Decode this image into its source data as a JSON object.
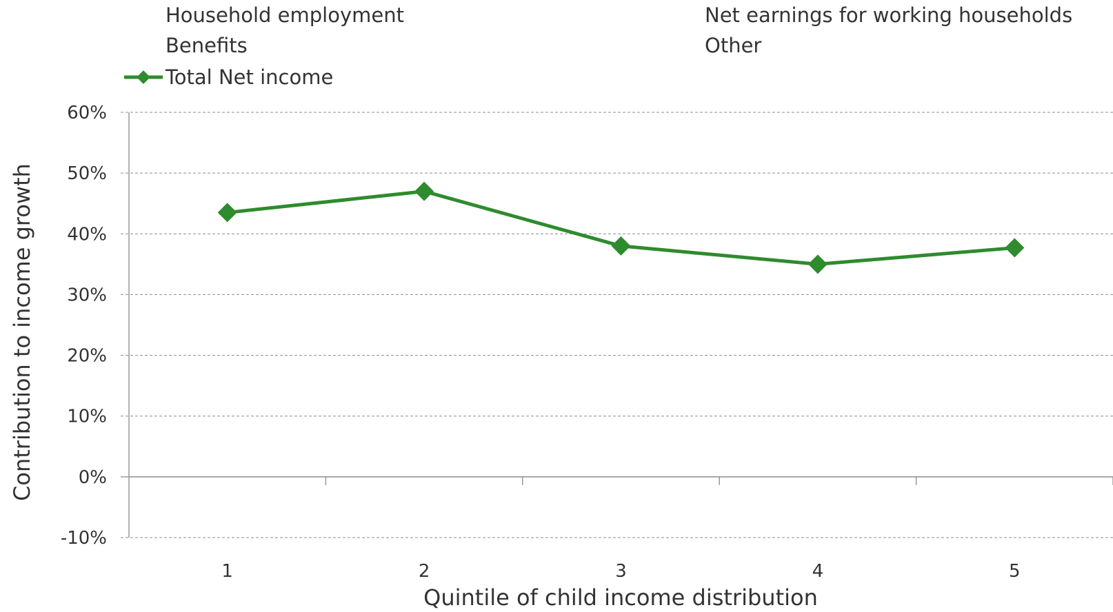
{
  "chart_data": {
    "type": "line",
    "title": "",
    "xlabel": "Quintile of child income distribution",
    "ylabel": "Contribution to income growth",
    "categories": [
      "1",
      "2",
      "3",
      "4",
      "5"
    ],
    "y_ticks": [
      "60%",
      "50%",
      "40%",
      "30%",
      "20%",
      "10%",
      "0%",
      "-10%"
    ],
    "ylim": [
      -10,
      60
    ],
    "y_unit": "%",
    "grid": true,
    "legend_position": "top",
    "legend": [
      {
        "label": "Household employment",
        "shows_marker": false
      },
      {
        "label": "Net earnings for working households",
        "shows_marker": false
      },
      {
        "label": "Benefits",
        "shows_marker": false
      },
      {
        "label": "Other",
        "shows_marker": false
      },
      {
        "label": "Total Net income",
        "shows_marker": true
      }
    ],
    "series": [
      {
        "name": "Total Net income",
        "color": "#2e8b2e",
        "marker": "diamond",
        "values": [
          43.5,
          47,
          38,
          35,
          37.7
        ]
      }
    ]
  }
}
